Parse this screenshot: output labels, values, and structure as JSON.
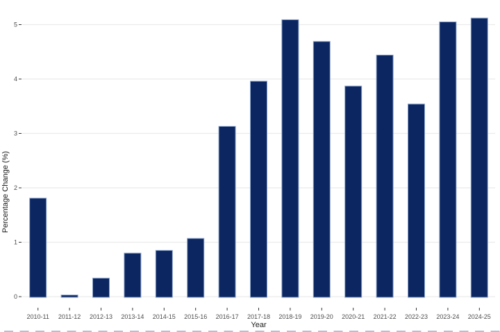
{
  "chart_data": {
    "type": "bar",
    "title": "",
    "xlabel": "Year",
    "ylabel": "Percentage Change (%)",
    "categories": [
      "2010-11",
      "2011-12",
      "2012-13",
      "2013-14",
      "2014-15",
      "2015-16",
      "2016-17",
      "2017-18",
      "2018-19",
      "2019-20",
      "2020-21",
      "2021-22",
      "2022-23",
      "2023-24",
      "2024-25"
    ],
    "values": [
      1.81,
      0.03,
      0.34,
      0.8,
      0.85,
      1.07,
      3.13,
      3.96,
      5.09,
      4.69,
      3.87,
      4.44,
      3.54,
      5.05,
      5.12
    ],
    "yticks": [
      0,
      1,
      2,
      3,
      4,
      5
    ],
    "ylim": [
      0,
      5.4
    ],
    "grid": "horizontal-major-only",
    "legend": "none",
    "colors": {
      "bar_fill": "#0b2661",
      "bar_border": "#8aa2c8",
      "gridline": "#ebebeb",
      "tick_mark": "#333333",
      "tick_label": "#4d4d4d",
      "axis_title": "#1a1a1a",
      "background": "#ffffff"
    }
  }
}
